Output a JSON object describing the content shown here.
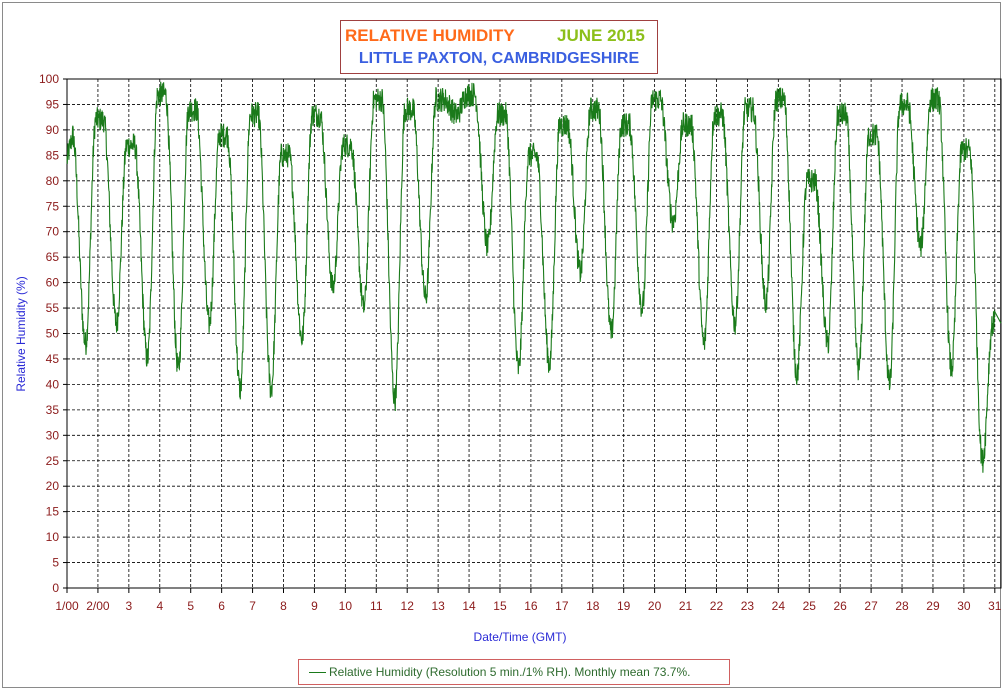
{
  "colors": {
    "title": "#ff6a1a",
    "month": "#8cbf1a",
    "location": "#3a5fe0",
    "axis_label": "#2b2bd6",
    "tick_label": "#8b1a1a",
    "series": "#1a7a1a",
    "legend_text": "#2e6b2e"
  },
  "chart_data": {
    "type": "line",
    "title": "RELATIVE HUMIDITY",
    "title_month": "JUNE 2015",
    "subtitle": "LITTLE PAXTON, CAMBRIDGESHIRE",
    "xlabel": "Date/Time (GMT)",
    "ylabel": "Relative Humidity (%)",
    "ylim": [
      0,
      100
    ],
    "xlim": [
      1,
      31.2
    ],
    "grid": true,
    "legend_position": "bottom-center",
    "y_ticks": [
      "0",
      "5",
      "10",
      "15",
      "20",
      "25",
      "30",
      "35",
      "40",
      "45",
      "50",
      "55",
      "60",
      "65",
      "70",
      "75",
      "80",
      "85",
      "90",
      "95",
      "100"
    ],
    "x_ticks": [
      "1/00",
      "2/00",
      "3",
      "4",
      "5",
      "6",
      "7",
      "8",
      "9",
      "10",
      "11",
      "12",
      "13",
      "14",
      "15",
      "16",
      "17",
      "18",
      "19",
      "20",
      "21",
      "22",
      "23",
      "24",
      "25",
      "26",
      "27",
      "28",
      "29",
      "30",
      "31"
    ],
    "series": [
      {
        "name": "Relative Humidity (Resolution 5 min./1% RH). Monthly mean 73.7%.",
        "daily_max": [
          89,
          92,
          87,
          97,
          94,
          89,
          93,
          85,
          93,
          87,
          96,
          94,
          96,
          97,
          93,
          85,
          91,
          94,
          91,
          96,
          91,
          93,
          94,
          96,
          80,
          93,
          89,
          95,
          96,
          86
        ],
        "daily_min": [
          48,
          52,
          45,
          43,
          52,
          39,
          39,
          49,
          59,
          55,
          37,
          57,
          93,
          67,
          43,
          44,
          62,
          50,
          55,
          72,
          48,
          52,
          56,
          42,
          48,
          43,
          40,
          67,
          43,
          25
        ],
        "first_value": 84,
        "last_value": 52
      }
    ]
  }
}
